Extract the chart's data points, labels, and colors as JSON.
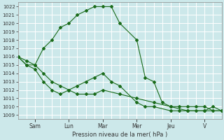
{
  "xlabel": "Pression niveau de la mer( hPa )",
  "background_color": "#cce8ea",
  "grid_color": "#ffffff",
  "grid_minor_color": "#ddf0f1",
  "line_color": "#1a6b1a",
  "ylim": [
    1008.5,
    1022.5
  ],
  "yticks": [
    1009,
    1010,
    1011,
    1012,
    1013,
    1014,
    1015,
    1016,
    1017,
    1018,
    1019,
    1020,
    1021,
    1022
  ],
  "day_labels": [
    "Sam",
    "Lun",
    "Mar",
    "Mer",
    "Jeu",
    "V"
  ],
  "day_positions": [
    24,
    72,
    120,
    168,
    216,
    264
  ],
  "xlim": [
    0,
    288
  ],
  "series1_x": [
    0,
    12,
    24,
    36,
    48,
    60,
    72,
    84,
    96,
    108,
    120,
    132,
    144,
    168,
    180,
    192,
    204,
    216,
    228,
    240,
    252,
    264,
    276,
    288
  ],
  "series1_y": [
    1016,
    1015,
    1015,
    1017,
    1018,
    1019.5,
    1020,
    1021,
    1021.5,
    1022,
    1022,
    1022,
    1020,
    1018,
    1013.5,
    1013,
    1010.5,
    1010,
    1010,
    1010,
    1010,
    1010,
    1009.5,
    1009.5
  ],
  "series2_x": [
    0,
    12,
    24,
    36,
    48,
    60,
    72,
    84,
    96,
    108,
    120,
    132,
    144,
    168,
    180,
    192,
    216,
    228,
    240,
    252,
    264,
    276,
    288
  ],
  "series2_y": [
    1016,
    1015,
    1014.5,
    1013,
    1012,
    1011.5,
    1012,
    1012.5,
    1013,
    1013.5,
    1014,
    1013,
    1012.5,
    1010.5,
    1010,
    1010,
    1009.5,
    1009.5,
    1009.5,
    1009.5,
    1009.5,
    1010,
    1009.5
  ],
  "series3_x": [
    0,
    12,
    24,
    36,
    48,
    60,
    72,
    84,
    96,
    108,
    120,
    144,
    168,
    192,
    216,
    240,
    264,
    288
  ],
  "series3_y": [
    1016,
    1015.5,
    1015,
    1014,
    1013,
    1012.5,
    1012,
    1011.5,
    1011.5,
    1011.5,
    1012,
    1011.5,
    1011,
    1010.5,
    1010,
    1009.5,
    1009.5,
    1009.5
  ]
}
